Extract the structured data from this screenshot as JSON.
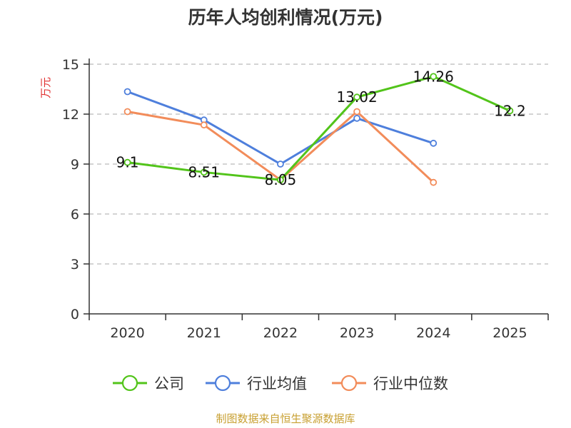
{
  "chart_data": {
    "type": "line",
    "title": "历年人均创利情况(万元)",
    "ylabel": "万元",
    "categories": [
      "2020",
      "2021",
      "2022",
      "2023",
      "2024",
      "2025"
    ],
    "y_ticks": [
      "0",
      "3",
      "6",
      "9",
      "12",
      "15"
    ],
    "ylim": [
      0,
      15
    ],
    "grid": true,
    "legend_position": "bottom",
    "series": [
      {
        "key": "company",
        "name": "公司",
        "color": "#52c41a",
        "values": [
          9.1,
          8.51,
          8.05,
          13.02,
          14.26,
          12.2
        ],
        "labels": [
          "9.1",
          "8.51",
          "8.05",
          "13.02",
          "14.26",
          "12.2"
        ]
      },
      {
        "key": "industry-avg",
        "name": "行业均值",
        "color": "#4e7fdc",
        "values": [
          13.35,
          11.65,
          9.0,
          11.75,
          10.25,
          null
        ]
      },
      {
        "key": "industry-median",
        "name": "行业中位数",
        "color": "#f28c5a",
        "values": [
          12.15,
          11.35,
          8.05,
          12.15,
          7.9,
          null
        ]
      }
    ],
    "source": "制图数据来自恒生聚源数据库",
    "ylabel_color": "#e03030",
    "source_color": "#c8a032"
  }
}
